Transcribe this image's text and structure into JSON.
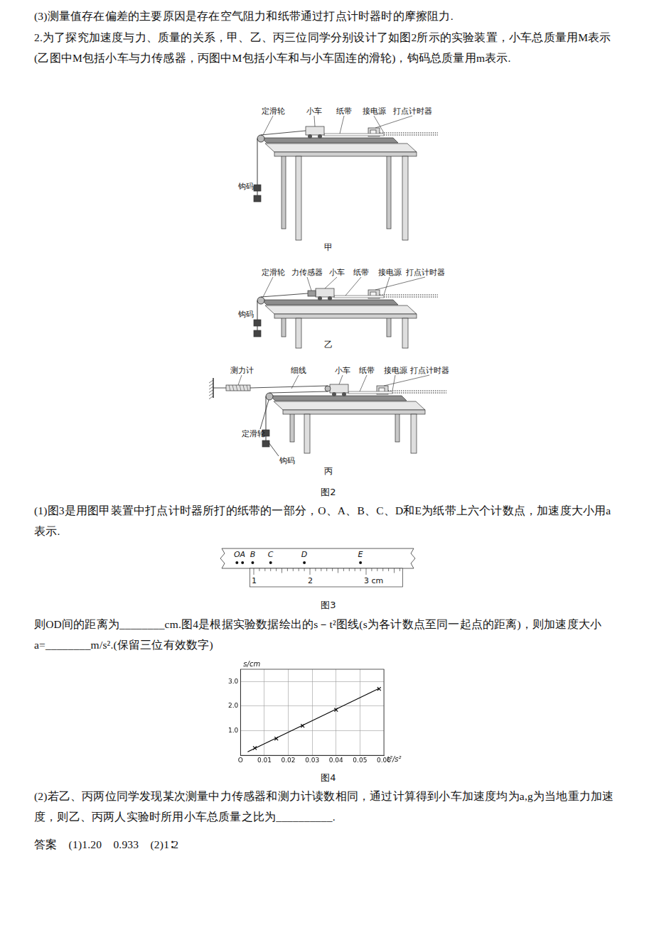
{
  "paragraphs": {
    "p1": "(3)测量值存在偏差的主要原因是存在空气阻力和纸带通过打点计时器时的摩擦阻力.",
    "p2": "2.为了探究加速度与力、质量的关系，甲、乙、丙三位同学分别设计了如图2所示的实验装置，小车总质量用M表示(乙图中M包括小车与力传感器，丙图中M包括小车和与小车固连的滑轮)，钩码总质量用m表示.",
    "q1": "(1)图3是用图甲装置中打点计时器所打的纸带的一部分，O、A、B、C、D和E为纸带上六个计数点，加速度大小用a表示.",
    "q1b": "则OD间的距离为________cm.图4是根据实验数据绘出的s－t²图线(s为各计数点至同一起点的距离)，则加速度大小a=________m/s².(保留三位有效数字)",
    "q2": "(2)若乙、丙两位同学发现某次测量中力传感器和测力计读数相同，通过计算得到小车加速度均为a,g为当地重力加速度，则乙、丙两人实验时所用小车总质量之比为__________.",
    "answer": "答案　(1)1.20　0.933　(2)1∶2"
  },
  "figure2": {
    "caption": "图2",
    "panels": [
      {
        "caption": "甲",
        "labels": {
          "pulley": "定滑轮",
          "cart": "小车",
          "tape": "纸带",
          "power": "接电源",
          "timer": "打点计时器",
          "weights": "钩码"
        }
      },
      {
        "caption": "乙",
        "labels": {
          "pulley": "定滑轮",
          "sensor": "力传感器",
          "cart": "小车",
          "tape": "纸带",
          "power": "接电源",
          "timer": "打点计时器",
          "weights": "钩码"
        }
      },
      {
        "caption": "丙",
        "labels": {
          "meter": "测力计",
          "string": "细线",
          "cart": "小车",
          "tape": "纸带",
          "power": "接电源",
          "timer": "打点计时器",
          "pulley": "定滑轮",
          "weights": "钩码"
        }
      }
    ]
  },
  "figure3": {
    "caption": "图3",
    "points": [
      {
        "label": "O",
        "value": 0.7
      },
      {
        "label": "A",
        "value": 0.8
      },
      {
        "label": "B",
        "value": 0.98
      },
      {
        "label": "C",
        "value": 1.3
      },
      {
        "label": "D",
        "value": 1.9
      },
      {
        "label": "E",
        "value": 2.9
      }
    ],
    "ruler": {
      "range": [
        0.93,
        3.65
      ],
      "minor_step": 0.1,
      "ticks": [
        {
          "value": 1,
          "label": "1"
        },
        {
          "value": 2,
          "label": "2"
        },
        {
          "value": 3,
          "label": "3 cm"
        }
      ]
    }
  },
  "figure4": {
    "caption": "图4"
  },
  "chart_data": {
    "type": "scatter",
    "x_label": "t²/s²",
    "y_label": "s/cm",
    "xlim": [
      0,
      0.06
    ],
    "ylim": [
      0,
      3.5
    ],
    "xticks": [
      {
        "value": 0,
        "label": "O"
      },
      0.01,
      0.02,
      0.03,
      0.04,
      0.05,
      0.06
    ],
    "yticks": [
      {
        "value": 1,
        "label": "1.0"
      },
      {
        "value": 2,
        "label": "2.0"
      },
      {
        "value": 3,
        "label": "3.0"
      }
    ],
    "grid": true,
    "series": [
      {
        "type": "scatter",
        "marker": "cross",
        "color": "#000000",
        "x": [
          0.006,
          0.015,
          0.026,
          0.04,
          0.058
        ],
        "values": [
          0.3,
          0.68,
          1.2,
          1.85,
          2.7
        ]
      },
      {
        "type": "line",
        "line_style": "solid",
        "color": "#000000",
        "x": [
          0.003,
          0.058
        ],
        "values": [
          0.14,
          2.72
        ]
      }
    ]
  }
}
